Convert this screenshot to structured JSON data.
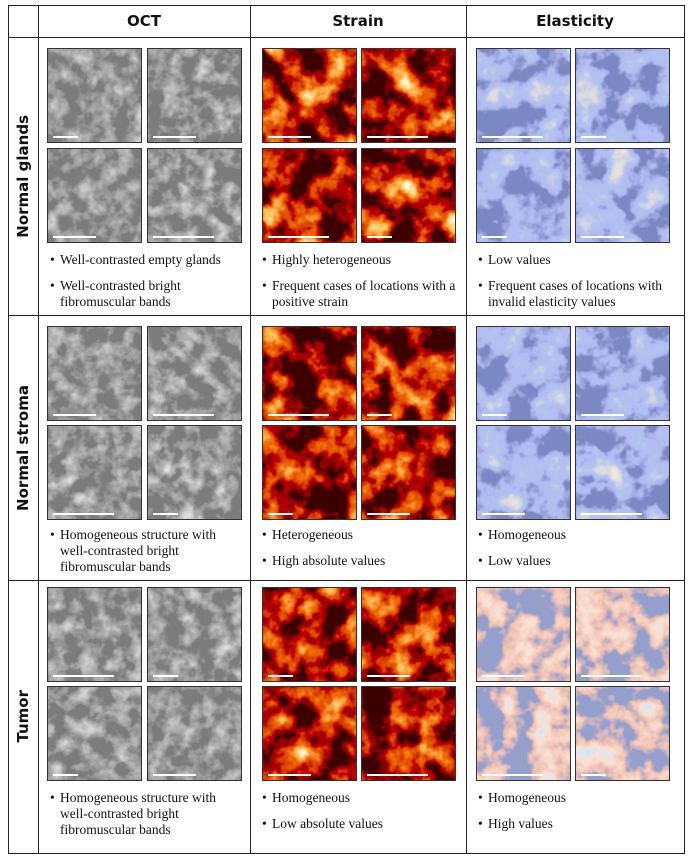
{
  "header": {
    "columns": [
      "OCT",
      "Strain",
      "Elasticity"
    ]
  },
  "rows": [
    {
      "label": "Normal glands",
      "cells": [
        [
          "Well-contrasted empty glands",
          "Well-contrasted bright fibromuscular bands"
        ],
        [
          "Highly heterogeneous",
          "Frequent cases of locations with a positive strain"
        ],
        [
          "Low values",
          "Frequent cases of locations with invalid elasticity values"
        ]
      ]
    },
    {
      "label": "Normal stroma",
      "cells": [
        [
          "Homogeneous structure with well-contrasted bright fibromuscular bands"
        ],
        [
          "Heterogeneous",
          "High absolute values"
        ],
        [
          "Homogeneous",
          "Low values"
        ]
      ]
    },
    {
      "label": "Tumor",
      "cells": [
        [
          "Homogeneous structure with well-contrasted bright fibromuscular bands"
        ],
        [
          "Homogeneous",
          "Low absolute values"
        ],
        [
          "Homogeneous",
          "High values"
        ]
      ]
    }
  ]
}
